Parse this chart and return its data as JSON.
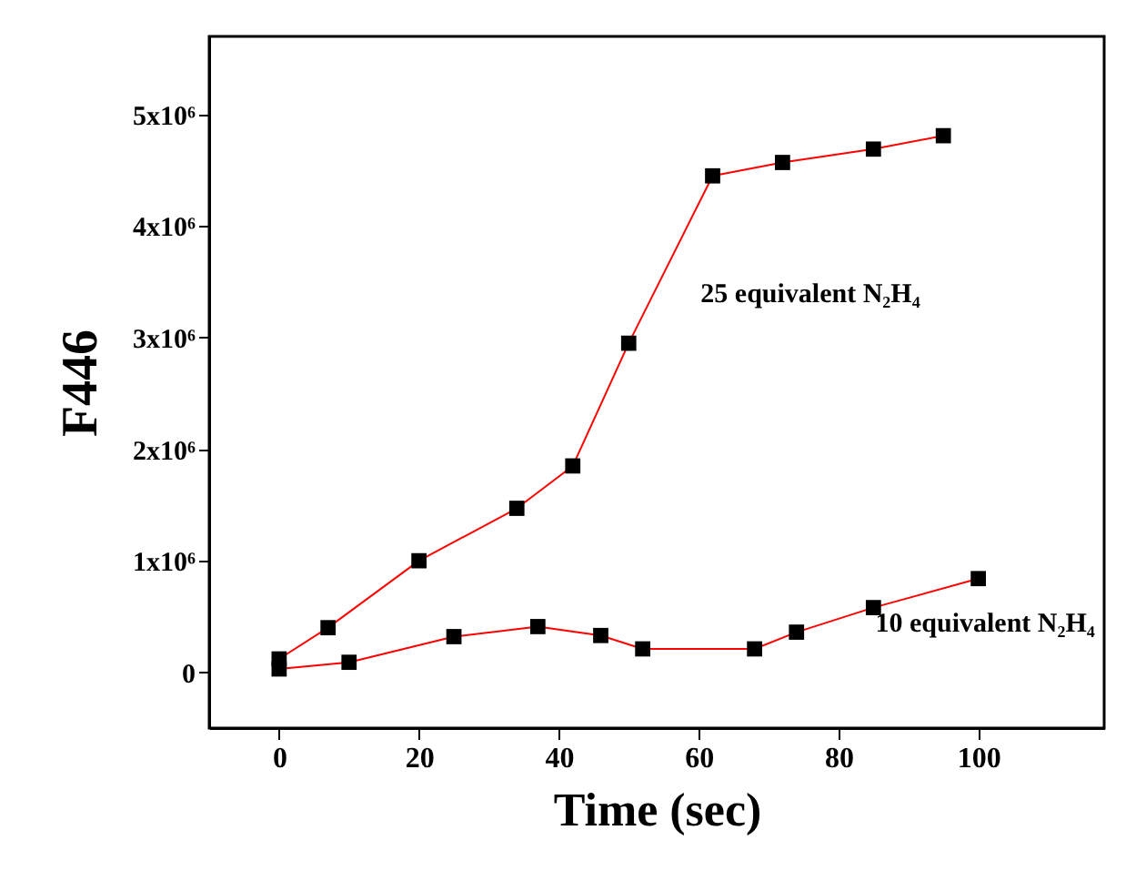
{
  "chart_data": {
    "type": "line",
    "xlabel": "Time (sec)",
    "ylabel": "F446",
    "marker": "square",
    "line_style": "solid",
    "xlim": [
      -10,
      118
    ],
    "xticks": [
      0,
      20,
      40,
      60,
      80,
      100
    ],
    "ylim": [
      -500000,
      5700000
    ],
    "yticks": [
      {
        "value": 0,
        "label": "0"
      },
      {
        "value": 1000000,
        "label": "1x10⁶"
      },
      {
        "value": 2000000,
        "label": "2x10⁶"
      },
      {
        "value": 3000000,
        "label": "3x10⁶"
      },
      {
        "value": 4000000,
        "label": "4x10⁶"
      },
      {
        "value": 5000000,
        "label": "5x10⁶"
      }
    ],
    "series": [
      {
        "color": "#ff0000",
        "x": [
          0,
          7,
          20,
          34,
          42,
          50,
          62,
          72,
          85,
          95
        ],
        "values": [
          120000,
          400000,
          1000000,
          1470000,
          1850000,
          2950000,
          4450000,
          4570000,
          4690000,
          4810000
        ]
      },
      {
        "color": "#ff0000",
        "x": [
          0,
          10,
          25,
          37,
          46,
          52,
          68,
          74,
          85,
          100
        ],
        "values": [
          30000,
          90000,
          320000,
          410000,
          330000,
          210000,
          210000,
          360000,
          580000,
          840000
        ]
      }
    ],
    "annotations": [
      {
        "text": "25 equivalent N₂H₄",
        "x": 53,
        "y": 3400000
      },
      {
        "text": "10 equivalent N₂H₄",
        "x": 78,
        "y": 450000
      }
    ]
  }
}
